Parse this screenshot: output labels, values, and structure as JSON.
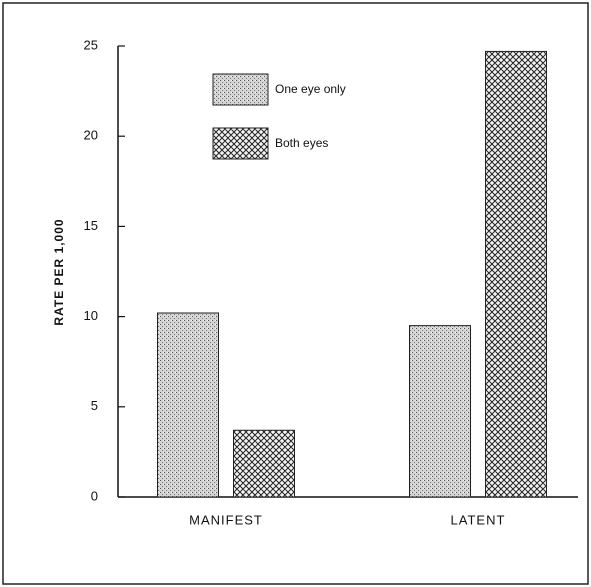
{
  "chart_data": {
    "type": "bar",
    "y_label": "RATE PER 1,000",
    "categories": [
      "MANIFEST",
      "LATENT"
    ],
    "series": [
      {
        "name": "One eye only",
        "pattern": "stipple",
        "values": [
          10.2,
          9.5
        ]
      },
      {
        "name": "Both eyes",
        "pattern": "crosshatch",
        "values": [
          3.7,
          24.7
        ]
      }
    ],
    "ylim": [
      0,
      25
    ],
    "yticks": [
      0,
      5,
      10,
      15,
      20,
      25
    ],
    "grid": false,
    "legend": "top"
  }
}
